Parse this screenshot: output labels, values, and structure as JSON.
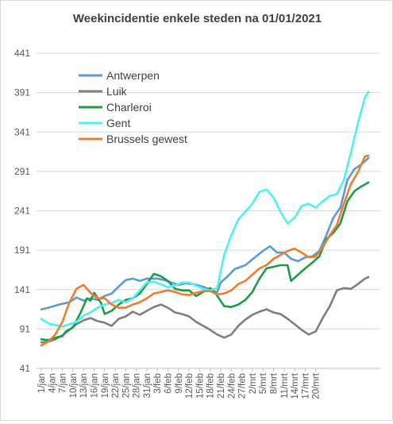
{
  "chart_data": {
    "type": "line",
    "title": "Weekincidentie  enkele steden na 01/01/2021",
    "xlabel": "",
    "ylabel": "",
    "ylim": [
      41,
      441
    ],
    "yticks": [
      41,
      91,
      141,
      191,
      241,
      291,
      341,
      391,
      441
    ],
    "grid": true,
    "legend_position": "top-left",
    "xtick_labels": [
      "1/jan",
      "4/jan",
      "7/jan",
      "10/jan",
      "13/jan",
      "16/jan",
      "19/jan",
      "22/jan",
      "25/jan",
      "28/jan",
      "31/jan",
      "3/feb",
      "6/feb",
      "9/feb",
      "12/feb",
      "15/feb",
      "18/feb",
      "21/feb",
      "24/feb",
      "27/feb",
      "2/mrt",
      "5/mrt",
      "8/mrt",
      "11/mrt",
      "14/mrt",
      "17/mrt",
      "20/mrt"
    ],
    "n_days": 84,
    "series": [
      {
        "name": "Antwerpen",
        "color": "#5B9BD5",
        "points": [
          [
            0,
            116
          ],
          [
            2,
            118
          ],
          [
            5,
            122
          ],
          [
            8,
            125
          ],
          [
            10,
            131
          ],
          [
            12,
            127
          ],
          [
            14,
            130
          ],
          [
            16,
            128
          ],
          [
            18,
            133
          ],
          [
            20,
            136
          ],
          [
            22,
            145
          ],
          [
            24,
            153
          ],
          [
            26,
            155
          ],
          [
            28,
            152
          ],
          [
            30,
            155
          ],
          [
            33,
            155
          ],
          [
            35,
            153
          ],
          [
            37,
            150
          ],
          [
            39,
            147
          ],
          [
            41,
            149
          ],
          [
            43,
            148
          ],
          [
            45,
            146
          ],
          [
            47,
            143
          ],
          [
            49,
            137
          ],
          [
            50,
            138
          ],
          [
            51,
            150
          ],
          [
            53,
            158
          ],
          [
            55,
            167
          ],
          [
            58,
            172
          ],
          [
            61,
            183
          ],
          [
            63,
            190
          ],
          [
            65,
            196
          ],
          [
            67,
            188
          ],
          [
            69,
            188
          ],
          [
            71,
            180
          ],
          [
            73,
            177
          ],
          [
            75,
            182
          ],
          [
            77,
            183
          ],
          [
            79,
            190
          ],
          [
            81,
            210
          ],
          [
            83,
            232
          ],
          [
            85,
            245
          ],
          [
            87,
            280
          ],
          [
            89,
            294
          ],
          [
            91,
            300
          ],
          [
            93,
            308
          ]
        ]
      },
      {
        "name": "Luik",
        "color": "#7F7F7F",
        "points": [
          [
            0,
            74
          ],
          [
            2,
            75
          ],
          [
            4,
            78
          ],
          [
            6,
            83
          ],
          [
            8,
            90
          ],
          [
            10,
            97
          ],
          [
            12,
            102
          ],
          [
            14,
            105
          ],
          [
            16,
            101
          ],
          [
            18,
            99
          ],
          [
            20,
            95
          ],
          [
            22,
            104
          ],
          [
            24,
            107
          ],
          [
            26,
            113
          ],
          [
            28,
            109
          ],
          [
            30,
            114
          ],
          [
            32,
            119
          ],
          [
            34,
            122
          ],
          [
            36,
            118
          ],
          [
            38,
            112
          ],
          [
            40,
            110
          ],
          [
            42,
            107
          ],
          [
            44,
            100
          ],
          [
            46,
            95
          ],
          [
            48,
            90
          ],
          [
            50,
            84
          ],
          [
            52,
            80
          ],
          [
            54,
            84
          ],
          [
            56,
            95
          ],
          [
            58,
            103
          ],
          [
            60,
            109
          ],
          [
            62,
            113
          ],
          [
            64,
            116
          ],
          [
            66,
            112
          ],
          [
            68,
            110
          ],
          [
            70,
            104
          ],
          [
            72,
            97
          ],
          [
            74,
            90
          ],
          [
            76,
            84
          ],
          [
            78,
            88
          ],
          [
            80,
            105
          ],
          [
            82,
            120
          ],
          [
            84,
            140
          ],
          [
            86,
            143
          ],
          [
            88,
            142
          ],
          [
            90,
            148
          ],
          [
            92,
            155
          ],
          [
            93,
            157
          ]
        ]
      },
      {
        "name": "Charleroi",
        "color": "#1E9B48",
        "points": [
          [
            0,
            78
          ],
          [
            2,
            77
          ],
          [
            4,
            80
          ],
          [
            6,
            82
          ],
          [
            7,
            88
          ],
          [
            9,
            93
          ],
          [
            11,
            110
          ],
          [
            13,
            130
          ],
          [
            14,
            127
          ],
          [
            15,
            137
          ],
          [
            17,
            124
          ],
          [
            18,
            110
          ],
          [
            20,
            114
          ],
          [
            22,
            122
          ],
          [
            24,
            128
          ],
          [
            26,
            130
          ],
          [
            28,
            136
          ],
          [
            30,
            148
          ],
          [
            32,
            161
          ],
          [
            34,
            158
          ],
          [
            36,
            152
          ],
          [
            38,
            142
          ],
          [
            40,
            140
          ],
          [
            42,
            140
          ],
          [
            44,
            133
          ],
          [
            46,
            138
          ],
          [
            48,
            143
          ],
          [
            49,
            140
          ],
          [
            50,
            133
          ],
          [
            52,
            120
          ],
          [
            54,
            119
          ],
          [
            56,
            122
          ],
          [
            58,
            128
          ],
          [
            60,
            138
          ],
          [
            62,
            155
          ],
          [
            64,
            168
          ],
          [
            66,
            170
          ],
          [
            68,
            172
          ],
          [
            70,
            172
          ],
          [
            71,
            152
          ],
          [
            73,
            160
          ],
          [
            75,
            168
          ],
          [
            77,
            175
          ],
          [
            79,
            183
          ],
          [
            81,
            205
          ],
          [
            83,
            213
          ],
          [
            85,
            225
          ],
          [
            87,
            253
          ],
          [
            89,
            266
          ],
          [
            91,
            272
          ],
          [
            93,
            277
          ]
        ]
      },
      {
        "name": "Gent",
        "color": "#4FF0F0",
        "points": [
          [
            0,
            104
          ],
          [
            2,
            98
          ],
          [
            4,
            96
          ],
          [
            6,
            94
          ],
          [
            8,
            97
          ],
          [
            10,
            100
          ],
          [
            12,
            108
          ],
          [
            14,
            112
          ],
          [
            16,
            118
          ],
          [
            18,
            122
          ],
          [
            20,
            124
          ],
          [
            22,
            128
          ],
          [
            24,
            125
          ],
          [
            26,
            130
          ],
          [
            28,
            140
          ],
          [
            30,
            150
          ],
          [
            32,
            151
          ],
          [
            34,
            148
          ],
          [
            36,
            144
          ],
          [
            38,
            146
          ],
          [
            40,
            150
          ],
          [
            42,
            150
          ],
          [
            44,
            146
          ],
          [
            46,
            142
          ],
          [
            48,
            140
          ],
          [
            50,
            143
          ],
          [
            52,
            185
          ],
          [
            54,
            210
          ],
          [
            56,
            230
          ],
          [
            58,
            240
          ],
          [
            60,
            250
          ],
          [
            62,
            265
          ],
          [
            64,
            268
          ],
          [
            66,
            258
          ],
          [
            68,
            240
          ],
          [
            70,
            225
          ],
          [
            72,
            232
          ],
          [
            74,
            247
          ],
          [
            76,
            250
          ],
          [
            78,
            245
          ],
          [
            80,
            253
          ],
          [
            82,
            260
          ],
          [
            84,
            262
          ],
          [
            86,
            280
          ],
          [
            88,
            315
          ],
          [
            90,
            352
          ],
          [
            92,
            385
          ],
          [
            93,
            392
          ]
        ]
      },
      {
        "name": "Brussels gewest",
        "color": "#ED7D31",
        "points": [
          [
            0,
            70
          ],
          [
            2,
            75
          ],
          [
            4,
            84
          ],
          [
            6,
            100
          ],
          [
            8,
            125
          ],
          [
            10,
            142
          ],
          [
            12,
            147
          ],
          [
            14,
            137
          ],
          [
            16,
            130
          ],
          [
            18,
            130
          ],
          [
            20,
            122
          ],
          [
            22,
            118
          ],
          [
            24,
            118
          ],
          [
            26,
            122
          ],
          [
            28,
            125
          ],
          [
            30,
            130
          ],
          [
            32,
            136
          ],
          [
            34,
            138
          ],
          [
            36,
            140
          ],
          [
            38,
            138
          ],
          [
            40,
            135
          ],
          [
            42,
            134
          ],
          [
            44,
            137
          ],
          [
            46,
            139
          ],
          [
            48,
            139
          ],
          [
            50,
            135
          ],
          [
            52,
            136
          ],
          [
            54,
            140
          ],
          [
            56,
            148
          ],
          [
            58,
            152
          ],
          [
            60,
            160
          ],
          [
            62,
            168
          ],
          [
            64,
            172
          ],
          [
            66,
            180
          ],
          [
            68,
            185
          ],
          [
            70,
            190
          ],
          [
            72,
            193
          ],
          [
            74,
            188
          ],
          [
            76,
            182
          ],
          [
            78,
            183
          ],
          [
            80,
            195
          ],
          [
            82,
            210
          ],
          [
            84,
            223
          ],
          [
            86,
            250
          ],
          [
            88,
            275
          ],
          [
            90,
            290
          ],
          [
            92,
            310
          ],
          [
            93,
            311
          ]
        ]
      }
    ]
  }
}
